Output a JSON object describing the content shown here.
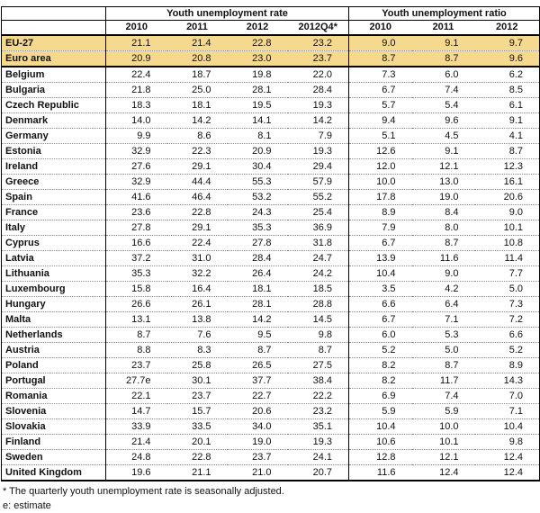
{
  "table": {
    "col_groups": [
      {
        "label": "Youth unemployment rate",
        "years": [
          "2010",
          "2011",
          "2012",
          "2012Q4*"
        ]
      },
      {
        "label": "Youth unemployment ratio",
        "years": [
          "2010",
          "2011",
          "2012"
        ]
      }
    ],
    "rows": [
      {
        "country": "EU-27",
        "highlight": true,
        "rate": [
          "21.1",
          "21.4",
          "22.8",
          "23.2"
        ],
        "ratio": [
          "9.0",
          "9.1",
          "9.7"
        ]
      },
      {
        "country": "Euro area",
        "highlight": true,
        "rate": [
          "20.9",
          "20.8",
          "23.0",
          "23.7"
        ],
        "ratio": [
          "8.7",
          "8.7",
          "9.6"
        ]
      },
      {
        "country": "Belgium",
        "highlight": false,
        "rate": [
          "22.4",
          "18.7",
          "19.8",
          "22.0"
        ],
        "ratio": [
          "7.3",
          "6.0",
          "6.2"
        ]
      },
      {
        "country": "Bulgaria",
        "highlight": false,
        "rate": [
          "21.8",
          "25.0",
          "28.1",
          "28.4"
        ],
        "ratio": [
          "6.7",
          "7.4",
          "8.5"
        ]
      },
      {
        "country": "Czech Republic",
        "highlight": false,
        "rate": [
          "18.3",
          "18.1",
          "19.5",
          "19.3"
        ],
        "ratio": [
          "5.7",
          "5.4",
          "6.1"
        ]
      },
      {
        "country": "Denmark",
        "highlight": false,
        "rate": [
          "14.0",
          "14.2",
          "14.1",
          "14.2"
        ],
        "ratio": [
          "9.4",
          "9.6",
          "9.1"
        ]
      },
      {
        "country": "Germany",
        "highlight": false,
        "rate": [
          "9.9",
          "8.6",
          "8.1",
          "7.9"
        ],
        "ratio": [
          "5.1",
          "4.5",
          "4.1"
        ]
      },
      {
        "country": "Estonia",
        "highlight": false,
        "rate": [
          "32.9",
          "22.3",
          "20.9",
          "19.3"
        ],
        "ratio": [
          "12.6",
          "9.1",
          "8.7"
        ]
      },
      {
        "country": "Ireland",
        "highlight": false,
        "rate": [
          "27.6",
          "29.1",
          "30.4",
          "29.4"
        ],
        "ratio": [
          "12.0",
          "12.1",
          "12.3"
        ]
      },
      {
        "country": "Greece",
        "highlight": false,
        "rate": [
          "32.9",
          "44.4",
          "55.3",
          "57.9"
        ],
        "ratio": [
          "10.0",
          "13.0",
          "16.1"
        ]
      },
      {
        "country": "Spain",
        "highlight": false,
        "rate": [
          "41.6",
          "46.4",
          "53.2",
          "55.2"
        ],
        "ratio": [
          "17.8",
          "19.0",
          "20.6"
        ]
      },
      {
        "country": "France",
        "highlight": false,
        "rate": [
          "23.6",
          "22.8",
          "24.3",
          "25.4"
        ],
        "ratio": [
          "8.9",
          "8.4",
          "9.0"
        ]
      },
      {
        "country": "Italy",
        "highlight": false,
        "rate": [
          "27.8",
          "29.1",
          "35.3",
          "36.9"
        ],
        "ratio": [
          "7.9",
          "8.0",
          "10.1"
        ]
      },
      {
        "country": "Cyprus",
        "highlight": false,
        "rate": [
          "16.6",
          "22.4",
          "27.8",
          "31.8"
        ],
        "ratio": [
          "6.7",
          "8.7",
          "10.8"
        ]
      },
      {
        "country": "Latvia",
        "highlight": false,
        "rate": [
          "37.2",
          "31.0",
          "28.4",
          "24.7"
        ],
        "ratio": [
          "13.9",
          "11.6",
          "11.4"
        ]
      },
      {
        "country": "Lithuania",
        "highlight": false,
        "rate": [
          "35.3",
          "32.2",
          "26.4",
          "24.2"
        ],
        "ratio": [
          "10.4",
          "9.0",
          "7.7"
        ]
      },
      {
        "country": "Luxembourg",
        "highlight": false,
        "rate": [
          "15.8",
          "16.4",
          "18.1",
          "18.5"
        ],
        "ratio": [
          "3.5",
          "4.2",
          "5.0"
        ]
      },
      {
        "country": "Hungary",
        "highlight": false,
        "rate": [
          "26.6",
          "26.1",
          "28.1",
          "28.8"
        ],
        "ratio": [
          "6.6",
          "6.4",
          "7.3"
        ]
      },
      {
        "country": "Malta",
        "highlight": false,
        "rate": [
          "13.1",
          "13.8",
          "14.2",
          "14.5"
        ],
        "ratio": [
          "6.7",
          "7.1",
          "7.2"
        ]
      },
      {
        "country": "Netherlands",
        "highlight": false,
        "rate": [
          "8.7",
          "7.6",
          "9.5",
          "9.8"
        ],
        "ratio": [
          "6.0",
          "5.3",
          "6.6"
        ]
      },
      {
        "country": "Austria",
        "highlight": false,
        "rate": [
          "8.8",
          "8.3",
          "8.7",
          "8.7"
        ],
        "ratio": [
          "5.2",
          "5.0",
          "5.2"
        ]
      },
      {
        "country": "Poland",
        "highlight": false,
        "rate": [
          "23.7",
          "25.8",
          "26.5",
          "27.5"
        ],
        "ratio": [
          "8.2",
          "8.7",
          "8.9"
        ]
      },
      {
        "country": "Portugal",
        "highlight": false,
        "rate": [
          "27.7e",
          "30.1",
          "37.7",
          "38.4"
        ],
        "ratio": [
          "8.2",
          "11.7",
          "14.3"
        ]
      },
      {
        "country": "Romania",
        "highlight": false,
        "rate": [
          "22.1",
          "23.7",
          "22.7",
          "22.2"
        ],
        "ratio": [
          "6.9",
          "7.4",
          "7.0"
        ]
      },
      {
        "country": "Slovenia",
        "highlight": false,
        "rate": [
          "14.7",
          "15.7",
          "20.6",
          "23.2"
        ],
        "ratio": [
          "5.9",
          "5.9",
          "7.1"
        ]
      },
      {
        "country": "Slovakia",
        "highlight": false,
        "rate": [
          "33.9",
          "33.5",
          "34.0",
          "35.1"
        ],
        "ratio": [
          "10.4",
          "10.0",
          "10.4"
        ]
      },
      {
        "country": "Finland",
        "highlight": false,
        "rate": [
          "21.4",
          "20.1",
          "19.0",
          "19.3"
        ],
        "ratio": [
          "10.6",
          "10.1",
          "9.8"
        ]
      },
      {
        "country": "Sweden",
        "highlight": false,
        "rate": [
          "24.8",
          "22.8",
          "23.7",
          "24.1"
        ],
        "ratio": [
          "12.8",
          "12.1",
          "12.4"
        ]
      },
      {
        "country": "United Kingdom",
        "highlight": false,
        "rate": [
          "19.6",
          "21.1",
          "21.0",
          "20.7"
        ],
        "ratio": [
          "11.6",
          "12.4",
          "12.4"
        ]
      }
    ]
  },
  "notes": {
    "quarterly": "* The quarterly youth unemployment rate is seasonally adjusted.",
    "estimate": "e: estimate"
  },
  "colors": {
    "highlight_row": "#F5D98E"
  }
}
